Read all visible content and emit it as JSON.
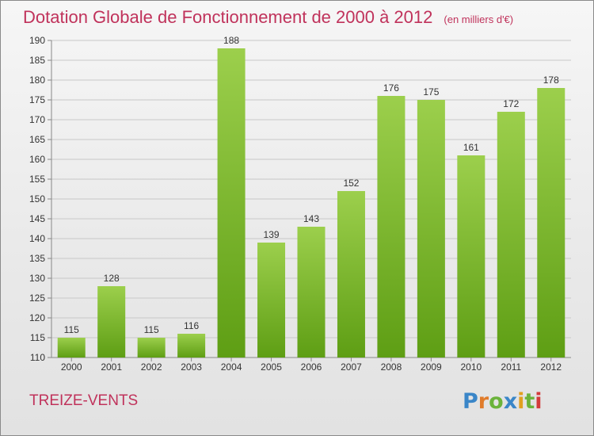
{
  "title": "Dotation Globale de Fonctionnement de 2000 à 2012",
  "unit": "(en milliers d'€)",
  "town": "TREIZE-VENTS",
  "logo": {
    "text": "Proxiti",
    "letters": [
      {
        "char": "P",
        "color": "#3a86c8"
      },
      {
        "char": "r",
        "color": "#e07b2a"
      },
      {
        "char": "o",
        "color": "#6bb33b"
      },
      {
        "char": "x",
        "color": "#3a86c8"
      },
      {
        "char": "i",
        "color": "#e0a020"
      },
      {
        "char": "t",
        "color": "#6bb33b"
      },
      {
        "char": "i",
        "color": "#d33b3b"
      }
    ]
  },
  "colors": {
    "title": "#c0325b",
    "bar_light": "#9ccf4c",
    "bar_dark": "#5e9e14",
    "grid": "#c8c8c8",
    "axis_text": "#333333"
  },
  "chart_data": {
    "type": "bar",
    "title": "Dotation Globale de Fonctionnement de 2000 à 2012",
    "subtitle": "(en milliers d'€)",
    "categories": [
      "2000",
      "2001",
      "2002",
      "2003",
      "2004",
      "2005",
      "2006",
      "2007",
      "2008",
      "2009",
      "2010",
      "2011",
      "2012"
    ],
    "values": [
      115,
      128,
      115,
      116,
      188,
      139,
      143,
      152,
      176,
      175,
      161,
      172,
      178
    ],
    "ylim": [
      110,
      190
    ],
    "yticks": [
      110,
      115,
      120,
      125,
      130,
      135,
      140,
      145,
      150,
      155,
      160,
      165,
      170,
      175,
      180,
      185,
      190
    ],
    "grid": true,
    "legend": "none"
  }
}
